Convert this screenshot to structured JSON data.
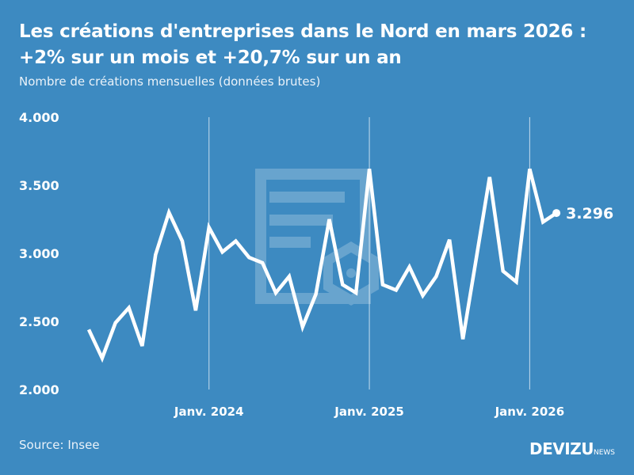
{
  "header": {
    "title": "Les créations d'entreprises dans le Nord en mars 2026 : +2% sur un mois et +20,7% sur un an",
    "subtitle": "Nombre de créations mensuelles (données brutes)"
  },
  "footer": {
    "source": "Source: Insee",
    "brand": "DEVIZU",
    "brand_suffix": "NEWS"
  },
  "colors": {
    "background": "#3d8ac1",
    "line": "#ffffff"
  },
  "chart_data": {
    "type": "line",
    "title": "Les créations d'entreprises dans le Nord en mars 2026 : +2% sur un mois et +20,7% sur un an",
    "subtitle": "Nombre de créations mensuelles (données brutes)",
    "x": [
      "2023-04",
      "2023-05",
      "2023-06",
      "2023-07",
      "2023-08",
      "2023-09",
      "2023-10",
      "2023-11",
      "2023-12",
      "2024-01",
      "2024-02",
      "2024-03",
      "2024-04",
      "2024-05",
      "2024-06",
      "2024-07",
      "2024-08",
      "2024-09",
      "2024-10",
      "2024-11",
      "2024-12",
      "2025-01",
      "2025-02",
      "2025-03",
      "2025-04",
      "2025-05",
      "2025-06",
      "2025-07",
      "2025-08",
      "2025-09",
      "2025-10",
      "2025-11",
      "2025-12",
      "2026-01",
      "2026-02",
      "2026-03"
    ],
    "values": [
      2440,
      2230,
      2490,
      2600,
      2320,
      2990,
      3300,
      3090,
      2580,
      3190,
      3010,
      3090,
      2970,
      2930,
      2710,
      2830,
      2460,
      2700,
      3250,
      2770,
      2710,
      3620,
      2770,
      2730,
      2900,
      2690,
      2830,
      3100,
      2370,
      2960,
      3560,
      2870,
      2790,
      3620,
      3230,
      3296
    ],
    "ylim": [
      2000,
      4000
    ],
    "yticks": [
      {
        "value": 2000,
        "label": "2.000"
      },
      {
        "value": 2500,
        "label": "2.500"
      },
      {
        "value": 3000,
        "label": "3.000"
      },
      {
        "value": 3500,
        "label": "3.500"
      },
      {
        "value": 4000,
        "label": "4.000"
      }
    ],
    "xticks": [
      {
        "x": "2024-01",
        "label": "Janv. 2024"
      },
      {
        "x": "2025-01",
        "label": "Janv. 2025"
      },
      {
        "x": "2026-01",
        "label": "Janv. 2026"
      }
    ],
    "last_label": "3.296",
    "grid": "vertical lines at January"
  }
}
